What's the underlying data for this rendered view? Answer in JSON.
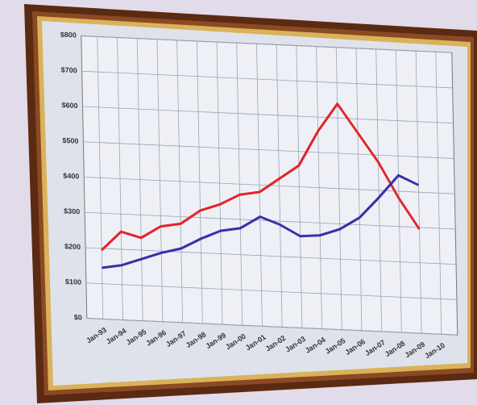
{
  "chart_data": {
    "type": "line",
    "categories": [
      "Jan-93",
      "Jan-94",
      "Jan-95",
      "Jan-96",
      "Jan-97",
      "Jan-98",
      "Jan-99",
      "Jan-00",
      "Jan-01",
      "Jan-02",
      "Jan-03",
      "Jan-04",
      "Jan-05",
      "Jan-06",
      "Jan-07",
      "Jan-08",
      "Jan-09",
      "Jan-10"
    ],
    "series": [
      {
        "color": "#e0262a",
        "values": [
          195,
          250,
          235,
          270,
          280,
          320,
          340,
          370,
          380,
          420,
          460,
          560,
          640,
          560,
          480,
          380,
          295,
          null
        ]
      },
      {
        "color": "#3a2fa8",
        "values": [
          145,
          155,
          175,
          195,
          210,
          240,
          265,
          275,
          310,
          290,
          260,
          265,
          285,
          320,
          380,
          445,
          420,
          null
        ]
      }
    ],
    "ylim": [
      0,
      800
    ],
    "yticks": [
      {
        "value": 0,
        "label": "$0"
      },
      {
        "value": 100,
        "label": "$100"
      },
      {
        "value": 200,
        "label": "$200"
      },
      {
        "value": 300,
        "label": "$300"
      },
      {
        "value": 400,
        "label": "$400"
      },
      {
        "value": 500,
        "label": "$500"
      },
      {
        "value": 600,
        "label": "$600"
      },
      {
        "value": 700,
        "label": "$700"
      },
      {
        "value": 800,
        "label": "$800"
      }
    ],
    "grid": true
  }
}
